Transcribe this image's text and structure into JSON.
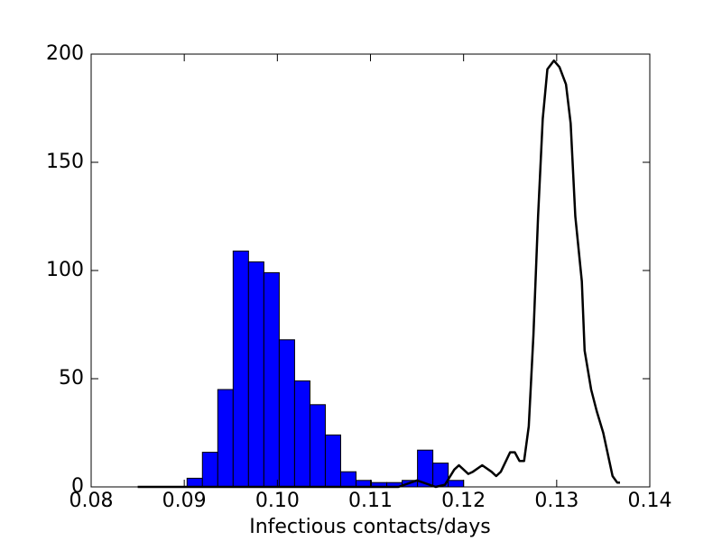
{
  "chart_data": {
    "type": "histogram",
    "xlabel": "Infectious contacts/days",
    "bins": [
      0.0903,
      0.09195,
      0.0936,
      0.09525,
      0.0969,
      0.09855,
      0.1002,
      0.10185,
      0.1035,
      0.10515,
      0.1068,
      0.10845,
      0.1101,
      0.11175,
      0.1134,
      0.11505,
      0.1167,
      0.11835,
      0.12,
      0.12165
    ],
    "values": [
      4,
      16,
      45,
      109,
      104,
      99,
      68,
      49,
      38,
      24,
      7,
      3,
      2,
      2,
      3,
      17,
      11,
      3,
      0
    ],
    "color": "#0000ff",
    "overlay": {
      "type": "line",
      "color": "#000000",
      "x": [
        0.085,
        0.09,
        0.1,
        0.113,
        0.115,
        0.117,
        0.118,
        0.119,
        0.1195,
        0.1205,
        0.121,
        0.122,
        0.123,
        0.1235,
        0.124,
        0.125,
        0.1255,
        0.126,
        0.1265,
        0.127,
        0.1275,
        0.128,
        0.1285,
        0.129,
        0.1297,
        0.1303,
        0.131,
        0.1315,
        0.132,
        0.1327,
        0.133,
        0.1337,
        0.1343,
        0.135,
        0.1355,
        0.136,
        0.1365,
        0.1368
      ],
      "values": [
        0,
        0,
        0,
        0,
        3,
        0,
        1,
        8,
        10,
        6,
        7,
        10,
        7,
        5,
        7,
        16,
        16,
        12,
        12,
        28,
        70,
        125,
        170,
        193,
        197,
        194,
        186,
        168,
        125,
        95,
        63,
        45,
        35,
        25,
        15,
        5,
        2,
        2
      ]
    },
    "xlim": [
      0.08,
      0.14
    ],
    "xticks": [
      0.08,
      0.09,
      {
        "value": 0.1,
        "label": "0.10"
      },
      0.11,
      0.12,
      0.13,
      0.14
    ],
    "ylim": [
      0,
      200
    ],
    "yticks": [
      0,
      50,
      100,
      150,
      200
    ]
  }
}
